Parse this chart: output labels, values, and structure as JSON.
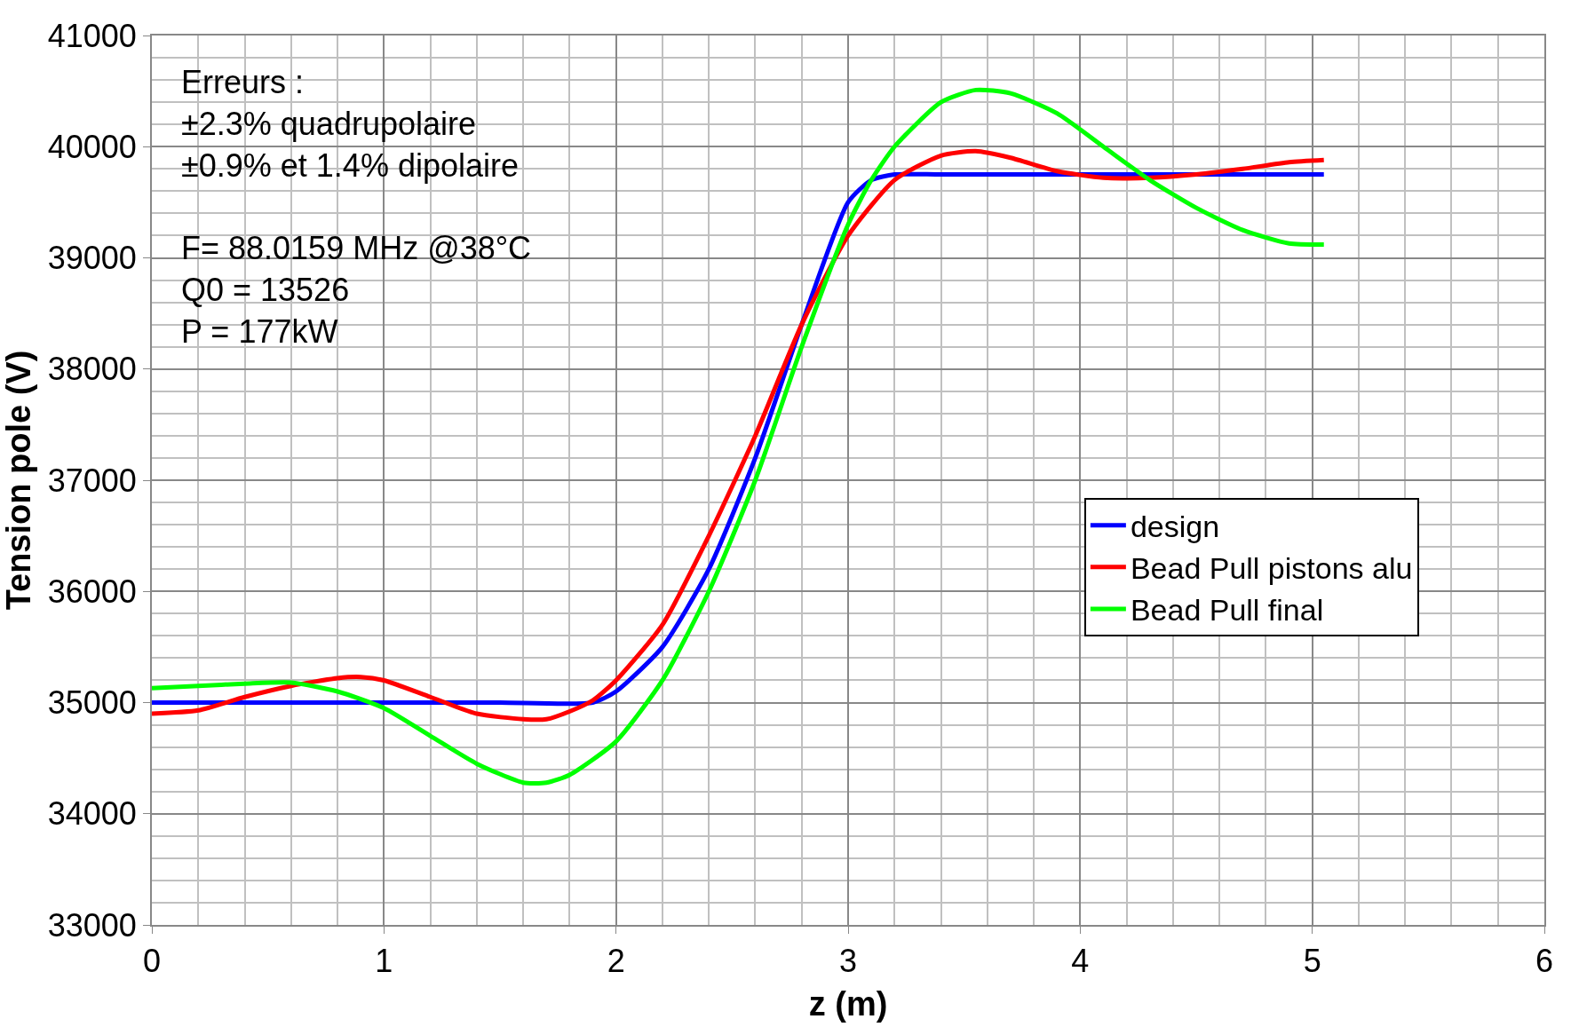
{
  "chart_data": {
    "type": "line",
    "xlabel": "z (m)",
    "ylabel": "Tension pole (V)",
    "xlim": [
      0,
      6
    ],
    "xticks": [
      0,
      1,
      2,
      3,
      4,
      5,
      6
    ],
    "ylim": [
      33000,
      41000
    ],
    "yticks": [
      33000,
      34000,
      35000,
      36000,
      37000,
      38000,
      39000,
      40000,
      41000
    ],
    "grid": true,
    "legend": "right",
    "marker": "none",
    "line_style": "solid",
    "annotations": [
      "Erreurs :\n±2.3% quadrupolaire\n±0.9% et 1.4% dipolaire\n\nF= 88.0159 MHz @38°C\nQ0 = 13526\nP = 177kW"
    ],
    "series": [
      {
        "name": "design",
        "color": "#0000ff",
        "x": [
          0,
          0.5,
          1.0,
          1.5,
          1.9,
          2.0,
          2.2,
          2.4,
          2.6,
          2.8,
          3.0,
          3.1,
          3.2,
          3.4,
          4.0,
          4.5,
          5.05
        ],
        "values": [
          35000,
          35000,
          35000,
          35000,
          35000,
          35100,
          35500,
          36200,
          37200,
          38400,
          39500,
          39700,
          39750,
          39750,
          39750,
          39750,
          39750
        ]
      },
      {
        "name": "Bead Pull pistons alu",
        "color": "#ff0000",
        "x": [
          0,
          0.2,
          0.4,
          0.6,
          0.8,
          0.9,
          1.0,
          1.2,
          1.4,
          1.6,
          1.7,
          1.8,
          1.9,
          2.0,
          2.2,
          2.4,
          2.6,
          2.8,
          3.0,
          3.2,
          3.4,
          3.55,
          3.7,
          3.9,
          4.1,
          4.3,
          4.5,
          4.7,
          4.9,
          5.05
        ],
        "values": [
          34900,
          34930,
          35050,
          35150,
          35220,
          35230,
          35200,
          35050,
          34900,
          34850,
          34850,
          34920,
          35020,
          35200,
          35700,
          36500,
          37400,
          38400,
          39200,
          39700,
          39920,
          39960,
          39900,
          39780,
          39720,
          39720,
          39750,
          39800,
          39860,
          39880
        ]
      },
      {
        "name": "Bead Pull final",
        "color": "#00ff00",
        "x": [
          0,
          0.2,
          0.4,
          0.6,
          0.8,
          1.0,
          1.2,
          1.4,
          1.6,
          1.7,
          1.8,
          2.0,
          2.2,
          2.4,
          2.6,
          2.8,
          3.0,
          3.1,
          3.2,
          3.4,
          3.55,
          3.7,
          3.9,
          4.1,
          4.3,
          4.5,
          4.7,
          4.9,
          5.05
        ],
        "values": [
          35130,
          35150,
          35170,
          35180,
          35100,
          34950,
          34700,
          34450,
          34280,
          34280,
          34350,
          34650,
          35200,
          36000,
          37000,
          38200,
          39300,
          39700,
          40000,
          40400,
          40510,
          40480,
          40300,
          40000,
          39700,
          39450,
          39250,
          39130,
          39120
        ]
      }
    ]
  }
}
